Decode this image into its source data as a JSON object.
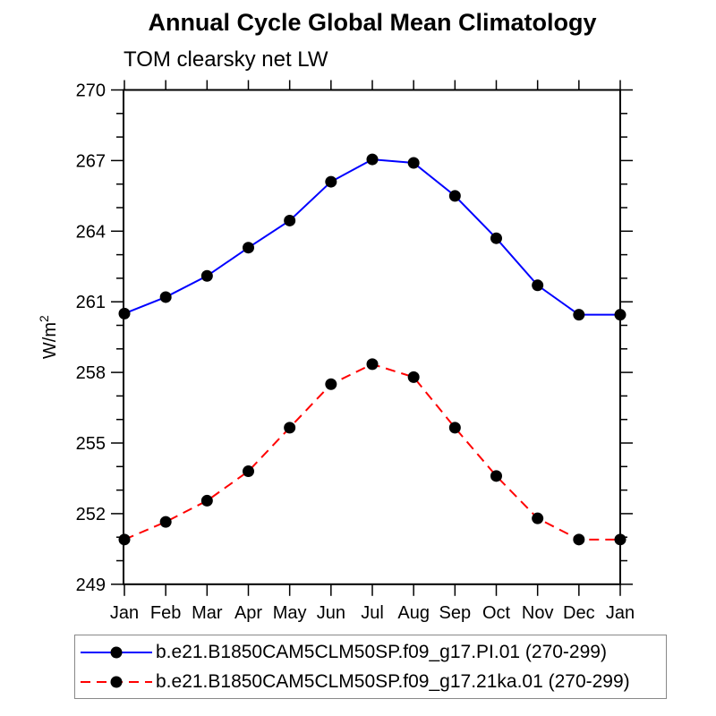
{
  "chart_data": {
    "type": "line",
    "title": "Annual Cycle Global Mean Climatology",
    "subtitle": "TOM clearsky net LW",
    "ylabel": "W/m²",
    "categories": [
      "Jan",
      "Feb",
      "Mar",
      "Apr",
      "May",
      "Jun",
      "Jul",
      "Aug",
      "Sep",
      "Oct",
      "Nov",
      "Dec",
      "Jan"
    ],
    "y_ticks": [
      249,
      252,
      255,
      258,
      261,
      264,
      267,
      270
    ],
    "ylim": [
      249,
      270
    ],
    "minor_tick_interval": 1,
    "grid": "off",
    "legend_position": "bottom",
    "series": [
      {
        "name": "b.e21.B1850CAM5CLM50SP.f09_g17.PI.01 (270-299)",
        "color": "#0000ff",
        "line_style": "solid",
        "marker": "filled-circle",
        "marker_color": "#000000",
        "values": [
          260.5,
          261.2,
          262.1,
          263.3,
          264.45,
          266.1,
          267.05,
          266.9,
          265.5,
          263.7,
          261.7,
          260.45,
          260.45
        ]
      },
      {
        "name": "b.e21.B1850CAM5CLM50SP.f09_g17.21ka.01 (270-299)",
        "color": "#ff0000",
        "line_style": "dashed",
        "marker": "filled-circle",
        "marker_color": "#000000",
        "values": [
          250.9,
          251.65,
          252.55,
          253.8,
          255.65,
          257.5,
          258.35,
          257.8,
          255.65,
          253.6,
          251.8,
          250.9,
          250.9
        ]
      }
    ],
    "axis_color": "#000000",
    "legend_border_color": "#888888"
  }
}
